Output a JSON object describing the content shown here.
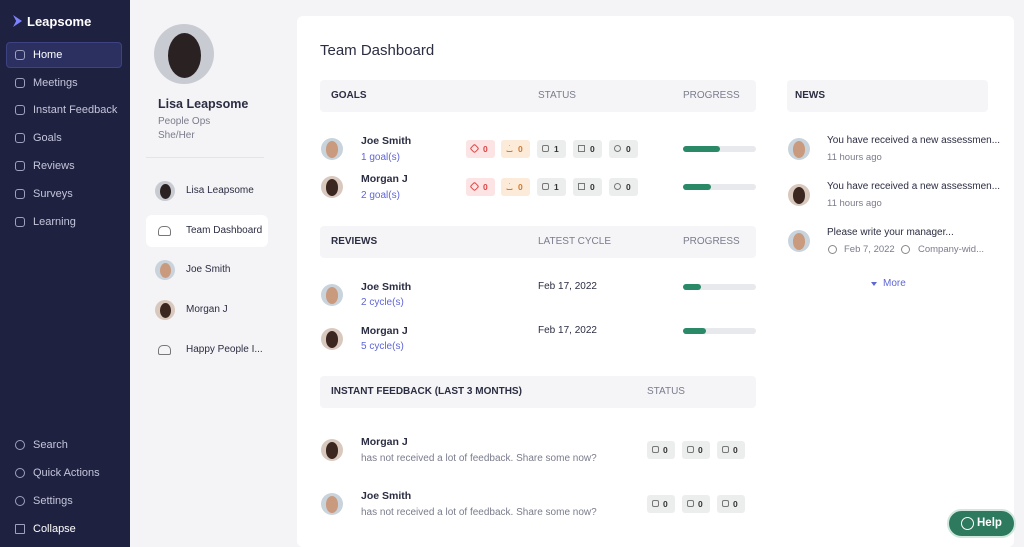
{
  "sidebar": {
    "logo": "Leapsome",
    "nav": [
      "Home",
      "Meetings",
      "Instant Feedback",
      "Goals",
      "Reviews",
      "Surveys",
      "Learning"
    ],
    "bottom": [
      "Search",
      "Quick Actions",
      "Settings",
      "Collapse"
    ]
  },
  "profile": {
    "name": "Lisa Leapsome",
    "role": "People Ops",
    "pronouns": "She/Her",
    "people": [
      "Lisa Leapsome",
      "Team Dashboard",
      "Joe Smith",
      "Morgan J",
      "Happy People I..."
    ]
  },
  "main": {
    "title": "Team Dashboard",
    "goals": {
      "headers": [
        "GOALS",
        "STATUS",
        "PROGRESS"
      ],
      "rows": [
        {
          "name": "Joe Smith",
          "link": "1 goal(s)",
          "status": [
            0,
            0,
            1,
            0,
            0
          ],
          "progress": 50
        },
        {
          "name": "Morgan J",
          "link": "2 goal(s)",
          "status": [
            0,
            0,
            1,
            0,
            0
          ],
          "progress": 38
        }
      ]
    },
    "reviews": {
      "headers": [
        "REVIEWS",
        "LATEST CYCLE",
        "PROGRESS"
      ],
      "rows": [
        {
          "name": "Joe Smith",
          "link": "2 cycle(s)",
          "cycle": "Feb 17, 2022",
          "progress": 25
        },
        {
          "name": "Morgan J",
          "link": "5 cycle(s)",
          "cycle": "Feb 17, 2022",
          "progress": 32
        }
      ]
    },
    "feedback": {
      "headers": [
        "INSTANT FEEDBACK (LAST 3 MONTHS)",
        "STATUS"
      ],
      "rows": [
        {
          "name": "Morgan J",
          "text": "has not received a lot of feedback. Share some now?",
          "status": [
            0,
            0,
            0
          ]
        },
        {
          "name": "Joe Smith",
          "text": "has not received a lot of feedback. Share some now?",
          "status": [
            0,
            0,
            0
          ]
        }
      ]
    },
    "news": {
      "header": "NEWS",
      "items": [
        {
          "text": "You have received a new assessmen...",
          "time": "11 hours ago"
        },
        {
          "text": "You have received a new assessmen...",
          "time": "11 hours ago"
        },
        {
          "text": "Please write your manager...",
          "date": "Feb 7, 2022",
          "scope": "Company-wid..."
        }
      ],
      "more": "More"
    },
    "help": "Help"
  }
}
